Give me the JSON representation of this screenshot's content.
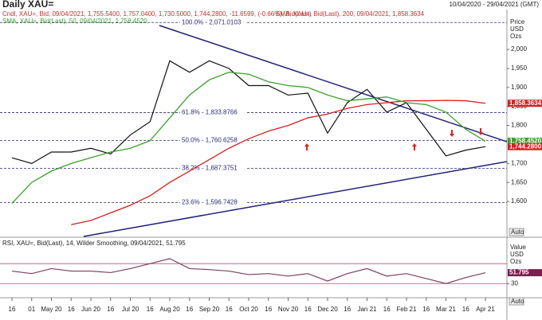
{
  "chart_data": [
    {
      "type": "line",
      "title": "Daily XAU=",
      "date_range": "10/04/2020 - 29/04/2021 (GMT)",
      "legend_text": [
        "Cndl, XAU=, Bid, 09/04/2021, 1,755.5400, 1,757.0400, 1,730.5000, 1,744.2800, -11.6599, (-0.66%), Bid(Last)",
        "SMA, XAU=, Bid(Last), 200, 09/04/2021, 1,858.3634",
        "SMA, XAU=, Bid(Last), 50, 09/04/2021, 1,758.4520"
      ],
      "axis_title": [
        "Price",
        "USD",
        "Ozs"
      ],
      "scale_button": "Auto",
      "categories": [
        "16",
        "01",
        "May 20",
        "16",
        "Jun 20",
        "16",
        "Jul 20",
        "16",
        "Aug 20",
        "16",
        "Sep 20",
        "16",
        "Oct 20",
        "16",
        "Nov 20",
        "16",
        "Dec 20",
        "16",
        "Jan 21",
        "16",
        "Feb 21",
        "16",
        "Mar 21",
        "16",
        "Apr 21"
      ],
      "series": [
        {
          "name": "XAU=",
          "color": "#111111",
          "values": [
            1715,
            1700,
            1730,
            1730,
            1740,
            1725,
            1775,
            1810,
            1970,
            1940,
            1970,
            1950,
            1905,
            1905,
            1880,
            1885,
            1780,
            1860,
            1895,
            1835,
            1860,
            1790,
            1720,
            1735,
            1744.28
          ]
        },
        {
          "name": "SMA 200",
          "color": "#d42020",
          "values": [
            null,
            null,
            null,
            1539,
            1550,
            1570,
            1590,
            1615,
            1650,
            1680,
            1710,
            1740,
            1765,
            1785,
            1800,
            1820,
            1830,
            1845,
            1855,
            1860,
            1865,
            1865,
            1866,
            1865,
            1858.3634
          ]
        },
        {
          "name": "SMA 50",
          "color": "#3aa02a",
          "values": [
            1595,
            1650,
            1680,
            1700,
            1715,
            1730,
            1740,
            1760,
            1820,
            1880,
            1920,
            1940,
            1935,
            1915,
            1905,
            1900,
            1880,
            1865,
            1870,
            1875,
            1860,
            1855,
            1835,
            1790,
            1758.452
          ]
        }
      ],
      "ylim": [
        1508,
        2105
      ],
      "yticks": [
        {
          "value": 1600,
          "label": "1,600"
        },
        {
          "value": 1650,
          "label": "1,650"
        },
        {
          "value": 1700,
          "label": "1,700"
        },
        {
          "value": 1800,
          "label": "1,800"
        },
        {
          "value": 1850,
          "label": "1,850"
        },
        {
          "value": 1900,
          "label": "1,900"
        },
        {
          "value": 1950,
          "label": "1,950"
        },
        {
          "value": 2000,
          "label": "2,000"
        }
      ],
      "fib_levels": [
        {
          "value": 2071.0103,
          "label": "100.0% - 2,071.0103"
        },
        {
          "value": 1833.8766,
          "label": "61.8% - 1,833.8766"
        },
        {
          "value": 1760.6258,
          "label": "50.0% - 1,760.6258"
        },
        {
          "value": 1687.3751,
          "label": "38.2% - 1,687.3751"
        },
        {
          "value": 1596.7428,
          "label": "23.6% - 1,596.7428"
        }
      ],
      "last_tags": [
        {
          "value": 1858.3634,
          "label": "1,858.3634",
          "color": "#d42020"
        },
        {
          "value": 1758.452,
          "label": "1,758.4520",
          "color": "#3aa02a"
        },
        {
          "value": 1744.28,
          "label": "1,744.2800",
          "color": "#d42020"
        }
      ]
    },
    {
      "type": "line",
      "legend_text": "RSI, XAU=, Bid(Last), 14, Wilder Smoothing, 09/04/2021, 51.795",
      "axis_title": [
        "Value",
        "USD",
        "Ozs"
      ],
      "scale_button": "Auto",
      "series": [
        {
          "name": "RSI",
          "color": "#7a4060",
          "values": [
            55,
            50,
            60,
            55,
            55,
            52,
            60,
            70,
            80,
            60,
            58,
            55,
            48,
            50,
            45,
            50,
            35,
            50,
            60,
            45,
            50,
            40,
            30,
            42,
            51.795
          ]
        }
      ],
      "ylim": [
        8,
        99
      ],
      "yticks": [
        30
      ],
      "levels": [
        70,
        30
      ],
      "last_tags": [
        {
          "value": 51.795,
          "label": "51.795",
          "color": "#7a2050"
        }
      ]
    }
  ]
}
